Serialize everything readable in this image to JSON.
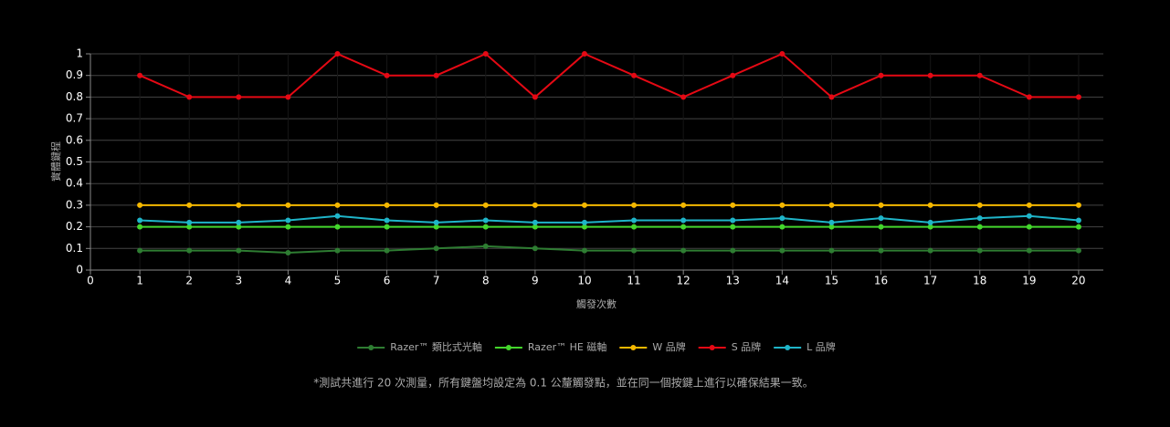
{
  "chart_data": {
    "type": "line",
    "y_label": "實體鍵程",
    "x_label": "觸發次數",
    "note": "*測試共進行 20 次測量，所有鍵盤均設定為 0.1 公釐觸發點，並在同一個按鍵上進行以確保結果一致。",
    "x": [
      1,
      2,
      3,
      4,
      5,
      6,
      7,
      8,
      9,
      10,
      11,
      12,
      13,
      14,
      15,
      16,
      17,
      18,
      19,
      20
    ],
    "xlim": [
      0,
      20.5
    ],
    "xticks": [
      0,
      1,
      2,
      3,
      4,
      5,
      6,
      7,
      8,
      9,
      10,
      11,
      12,
      13,
      14,
      15,
      16,
      17,
      18,
      19,
      20
    ],
    "ylim": [
      0,
      1
    ],
    "yticks": [
      0,
      0.1,
      0.2,
      0.3,
      0.4,
      0.5,
      0.6,
      0.7,
      0.8,
      0.9,
      1
    ],
    "grid": true,
    "legend": "bottom",
    "series": [
      {
        "name": "Razer™ 類比式光軸",
        "color": "#2e7d32",
        "values": [
          0.09,
          0.09,
          0.09,
          0.08,
          0.09,
          0.09,
          0.1,
          0.11,
          0.1,
          0.09,
          0.09,
          0.09,
          0.09,
          0.09,
          0.09,
          0.09,
          0.09,
          0.09,
          0.09,
          0.09
        ]
      },
      {
        "name": "Razer™ HE 磁軸",
        "color": "#44d62c",
        "values": [
          0.2,
          0.2,
          0.2,
          0.2,
          0.2,
          0.2,
          0.2,
          0.2,
          0.2,
          0.2,
          0.2,
          0.2,
          0.2,
          0.2,
          0.2,
          0.2,
          0.2,
          0.2,
          0.2,
          0.2
        ]
      },
      {
        "name": "W 品牌",
        "color": "#f5b800",
        "values": [
          0.3,
          0.3,
          0.3,
          0.3,
          0.3,
          0.3,
          0.3,
          0.3,
          0.3,
          0.3,
          0.3,
          0.3,
          0.3,
          0.3,
          0.3,
          0.3,
          0.3,
          0.3,
          0.3,
          0.3
        ]
      },
      {
        "name": "S 品牌",
        "color": "#e50914",
        "values": [
          0.9,
          0.8,
          0.8,
          0.8,
          1,
          0.9,
          0.9,
          1,
          0.8,
          1,
          0.9,
          0.8,
          0.9,
          1,
          0.8,
          0.9,
          0.9,
          0.9,
          0.8,
          0.8
        ]
      },
      {
        "name": "L 品牌",
        "color": "#1fb5c9",
        "values": [
          0.23,
          0.22,
          0.22,
          0.23,
          0.25,
          0.23,
          0.22,
          0.23,
          0.22,
          0.22,
          0.23,
          0.23,
          0.23,
          0.24,
          0.22,
          0.24,
          0.22,
          0.24,
          0.25,
          0.23
        ]
      }
    ]
  }
}
